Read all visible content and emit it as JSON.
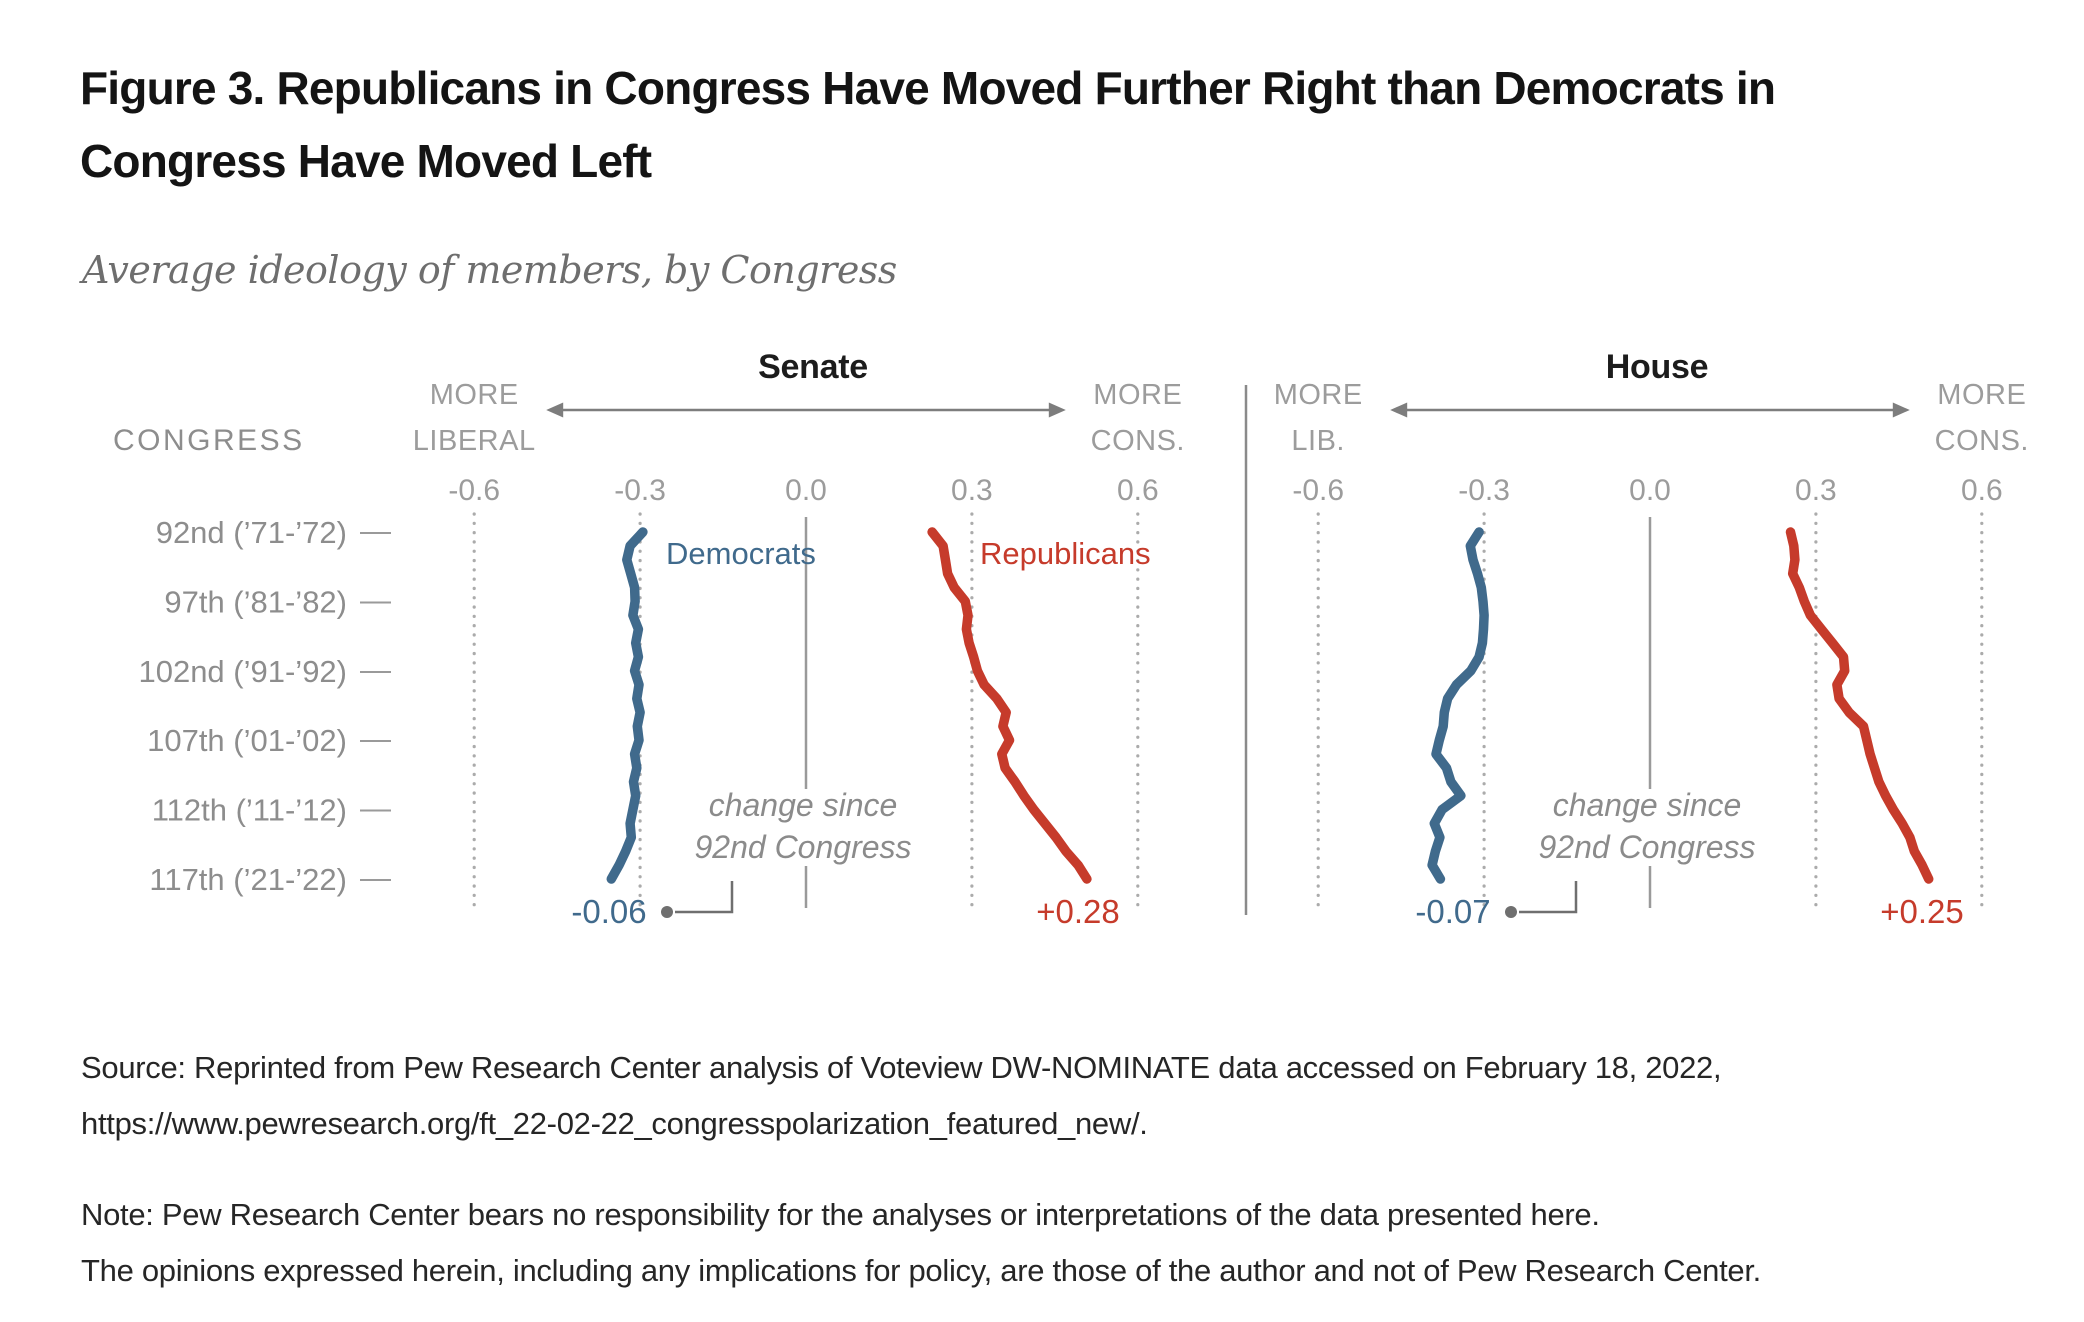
{
  "figure": {
    "title_line1": "Figure 3. Republicans in Congress Have Moved Further Right than Democrats in",
    "title_line2": "Congress Have Moved Left",
    "subtitle": "Average ideology of members, by Congress"
  },
  "source": {
    "line1": "Source: Reprinted from Pew Research Center analysis of Voteview DW-NOMINATE data accessed on February 18, 2022,",
    "line2": "https://www.pewresearch.org/ft_22-02-22_congresspolarization_featured_new/."
  },
  "note": {
    "line1": "Note: Pew Research Center bears no responsibility for the analyses or interpretations of the data presented here.",
    "line2": "The opinions expressed herein, including any implications for policy, are those of the author and not of Pew Research Center."
  },
  "chart_data": {
    "type": "line",
    "title": "Average ideology of members, by Congress",
    "grid": "dotted-vertical",
    "legend_position": "inline",
    "row_axis_title": "CONGRESS",
    "x": [
      92,
      93,
      94,
      95,
      96,
      97,
      98,
      99,
      100,
      101,
      102,
      103,
      104,
      105,
      106,
      107,
      108,
      109,
      110,
      111,
      112,
      113,
      114,
      115,
      116,
      117
    ],
    "row_labels": [
      {
        "congress": 92,
        "label": "92nd (’71-’72)"
      },
      {
        "congress": 97,
        "label": "97th (’81-’82)"
      },
      {
        "congress": 102,
        "label": "102nd (’91-’92)"
      },
      {
        "congress": 107,
        "label": "107th (’01-’02)"
      },
      {
        "congress": 112,
        "label": "112th (’11-’12)"
      },
      {
        "congress": 117,
        "label": "117th (’21-’22)"
      }
    ],
    "row_tick_glyph": "—",
    "panels": [
      {
        "title": "Senate",
        "direction_left": [
          "MORE",
          "LIBERAL"
        ],
        "direction_right": [
          "MORE",
          "CONS."
        ],
        "ticks": [
          -0.6,
          -0.3,
          0.0,
          0.3,
          0.6
        ],
        "tick_labels": [
          "-0.6",
          "-0.3",
          "0.0",
          "0.3",
          "0.6"
        ],
        "xlim": [
          -0.72,
          0.72
        ],
        "annotation": [
          "change since",
          "92nd Congress"
        ],
        "series": [
          {
            "name": "Democrats",
            "color": "#406a8c",
            "label_visible": true,
            "change_label": "-0.06",
            "values": [
              -0.295,
              -0.318,
              -0.324,
              -0.317,
              -0.31,
              -0.309,
              -0.313,
              -0.303,
              -0.308,
              -0.303,
              -0.31,
              -0.302,
              -0.306,
              -0.3,
              -0.305,
              -0.302,
              -0.31,
              -0.306,
              -0.312,
              -0.308,
              -0.313,
              -0.318,
              -0.316,
              -0.326,
              -0.338,
              -0.352
            ]
          },
          {
            "name": "Republicans",
            "color": "#c63b2b",
            "label_visible": true,
            "change_label": "+0.28",
            "values": [
              0.228,
              0.248,
              0.252,
              0.256,
              0.268,
              0.288,
              0.293,
              0.29,
              0.295,
              0.303,
              0.31,
              0.322,
              0.345,
              0.362,
              0.356,
              0.368,
              0.354,
              0.36,
              0.378,
              0.394,
              0.412,
              0.432,
              0.452,
              0.47,
              0.492,
              0.508
            ]
          }
        ]
      },
      {
        "title": "House",
        "direction_left": [
          "MORE",
          "LIB."
        ],
        "direction_right": [
          "MORE",
          "CONS."
        ],
        "ticks": [
          -0.6,
          -0.3,
          0.0,
          0.3,
          0.6
        ],
        "tick_labels": [
          "-0.6",
          "-0.3",
          "0.0",
          "0.3",
          "0.6"
        ],
        "xlim": [
          -0.72,
          0.72
        ],
        "annotation": [
          "change since",
          "92nd Congress"
        ],
        "series": [
          {
            "name": "Democrats",
            "color": "#406a8c",
            "label_visible": false,
            "change_label": "-0.07",
            "values": [
              -0.309,
              -0.325,
              -0.32,
              -0.312,
              -0.305,
              -0.302,
              -0.3,
              -0.301,
              -0.303,
              -0.309,
              -0.324,
              -0.35,
              -0.366,
              -0.372,
              -0.374,
              -0.381,
              -0.387,
              -0.368,
              -0.36,
              -0.342,
              -0.376,
              -0.39,
              -0.38,
              -0.388,
              -0.394,
              -0.379
            ]
          },
          {
            "name": "Republicans",
            "color": "#c63b2b",
            "label_visible": false,
            "change_label": "+0.25",
            "values": [
              0.254,
              0.26,
              0.262,
              0.258,
              0.27,
              0.279,
              0.29,
              0.31,
              0.33,
              0.35,
              0.352,
              0.338,
              0.342,
              0.36,
              0.386,
              0.392,
              0.398,
              0.406,
              0.414,
              0.426,
              0.44,
              0.456,
              0.47,
              0.478,
              0.492,
              0.504
            ]
          }
        ]
      }
    ]
  }
}
